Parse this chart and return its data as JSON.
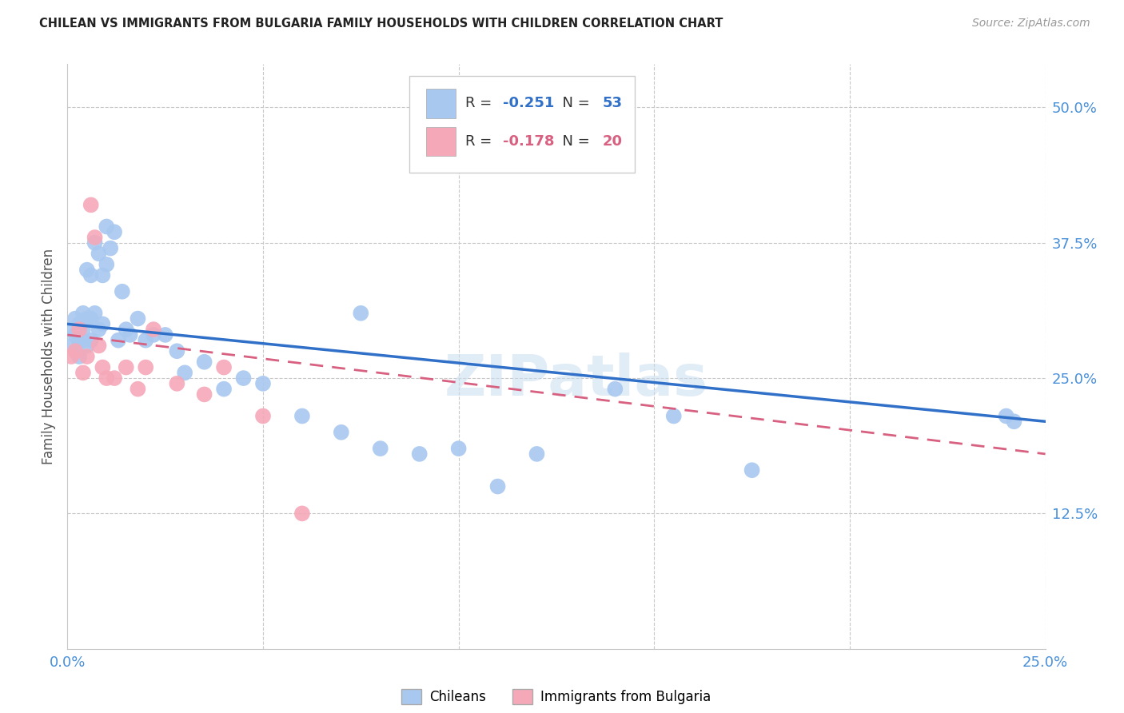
{
  "title": "CHILEAN VS IMMIGRANTS FROM BULGARIA FAMILY HOUSEHOLDS WITH CHILDREN CORRELATION CHART",
  "source": "Source: ZipAtlas.com",
  "ylabel": "Family Households with Children",
  "xlim": [
    0.0,
    0.25
  ],
  "ylim": [
    0.0,
    0.54
  ],
  "ytick_vals": [
    0.125,
    0.25,
    0.375,
    0.5
  ],
  "ytick_labels": [
    "12.5%",
    "25.0%",
    "37.5%",
    "50.0%"
  ],
  "xtick_vals": [
    0.0,
    0.25
  ],
  "xtick_labels": [
    "0.0%",
    "25.0%"
  ],
  "legend_labels": [
    "Chileans",
    "Immigrants from Bulgaria"
  ],
  "blue_color": "#a8c8f0",
  "pink_color": "#f5a8b8",
  "blue_line_color": "#3070c8",
  "pink_line_color": "#d86080",
  "axis_tick_color": "#4a90d9",
  "title_color": "#222222",
  "grid_color": "#c8c8c8",
  "watermark": "ZIPatlas",
  "R_blue": "-0.251",
  "N_blue": "53",
  "R_pink": "-0.178",
  "N_pink": "20",
  "blue_scatter_x": [
    0.001,
    0.001,
    0.002,
    0.002,
    0.003,
    0.003,
    0.003,
    0.004,
    0.004,
    0.004,
    0.005,
    0.005,
    0.005,
    0.006,
    0.006,
    0.006,
    0.007,
    0.007,
    0.008,
    0.008,
    0.009,
    0.009,
    0.01,
    0.01,
    0.011,
    0.012,
    0.013,
    0.014,
    0.015,
    0.016,
    0.018,
    0.02,
    0.022,
    0.025,
    0.028,
    0.03,
    0.035,
    0.04,
    0.045,
    0.05,
    0.06,
    0.07,
    0.075,
    0.08,
    0.09,
    0.1,
    0.11,
    0.12,
    0.14,
    0.155,
    0.175,
    0.24,
    0.242
  ],
  "blue_scatter_y": [
    0.295,
    0.28,
    0.29,
    0.305,
    0.285,
    0.27,
    0.3,
    0.285,
    0.31,
    0.295,
    0.305,
    0.28,
    0.35,
    0.305,
    0.345,
    0.285,
    0.31,
    0.375,
    0.365,
    0.295,
    0.345,
    0.3,
    0.39,
    0.355,
    0.37,
    0.385,
    0.285,
    0.33,
    0.295,
    0.29,
    0.305,
    0.285,
    0.29,
    0.29,
    0.275,
    0.255,
    0.265,
    0.24,
    0.25,
    0.245,
    0.215,
    0.2,
    0.31,
    0.185,
    0.18,
    0.185,
    0.15,
    0.18,
    0.24,
    0.215,
    0.165,
    0.215,
    0.21
  ],
  "pink_scatter_x": [
    0.001,
    0.002,
    0.003,
    0.004,
    0.005,
    0.006,
    0.007,
    0.008,
    0.009,
    0.01,
    0.012,
    0.015,
    0.018,
    0.02,
    0.022,
    0.028,
    0.035,
    0.04,
    0.05,
    0.06
  ],
  "pink_scatter_y": [
    0.27,
    0.275,
    0.295,
    0.255,
    0.27,
    0.41,
    0.38,
    0.28,
    0.26,
    0.25,
    0.25,
    0.26,
    0.24,
    0.26,
    0.295,
    0.245,
    0.235,
    0.26,
    0.215,
    0.125
  ],
  "blue_trendline_x": [
    0.0,
    0.25
  ],
  "blue_trendline_y": [
    0.3,
    0.21
  ],
  "pink_trendline_x": [
    0.0,
    0.25
  ],
  "pink_trendline_y": [
    0.29,
    0.18
  ],
  "background_color": "#ffffff"
}
